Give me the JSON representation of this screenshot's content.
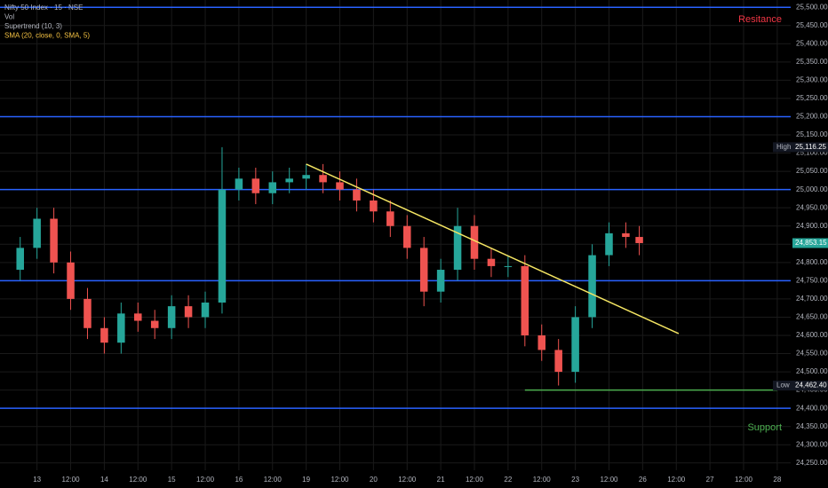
{
  "chart_data": {
    "type": "candlestick",
    "legend_lines": [
      "Nifty 50 Index · 15 · NSE",
      "Vol",
      "Supertrend (10, 3)",
      "SMA (20, close, 0, SMA, 5)"
    ],
    "up_color": "#26a69a",
    "down_color": "#ef5350",
    "grid": true,
    "x": [
      -0.5,
      0,
      0.5,
      1,
      1.5,
      2,
      2.5,
      3,
      3.5,
      4,
      4.5,
      5,
      5.5,
      6,
      6.5,
      7,
      7.5,
      8,
      8.5,
      9,
      9.5,
      10,
      10.5,
      11,
      11.5,
      12,
      12.5,
      13,
      13.5,
      14,
      14.5,
      15,
      15.5,
      16,
      16.5,
      17,
      17.5,
      17.9
    ],
    "open": [
      24780,
      24840,
      24920,
      24800,
      24700,
      24620,
      24580,
      24660,
      24640,
      24620,
      24680,
      24650,
      24690,
      25000,
      25030,
      24990,
      25020,
      25030,
      25040,
      25020,
      25000,
      24970,
      24940,
      24900,
      24840,
      24720,
      24780,
      24900,
      24810,
      24790,
      24790,
      24600,
      24560,
      24500,
      24650,
      24820,
      24880,
      24870
    ],
    "high": [
      24870,
      24950,
      24950,
      24830,
      24730,
      24650,
      24690,
      24690,
      24670,
      24710,
      24710,
      24720,
      25116.25,
      25060,
      25060,
      25050,
      25060,
      25070,
      25070,
      25050,
      25030,
      25000,
      24970,
      24930,
      24870,
      24810,
      24950,
      24930,
      24840,
      24820,
      24820,
      24630,
      24590,
      24680,
      24850,
      24910,
      24910,
      24900
    ],
    "low": [
      24750,
      24810,
      24770,
      24670,
      24590,
      24550,
      24550,
      24610,
      24590,
      24590,
      24620,
      24620,
      24660,
      24970,
      24960,
      24960,
      24990,
      25000,
      24990,
      24970,
      24940,
      24910,
      24870,
      24810,
      24680,
      24690,
      24750,
      24780,
      24760,
      24760,
      24570,
      24530,
      24462.4,
      24470,
      24620,
      24790,
      24840,
      24820
    ],
    "close": [
      24840,
      24920,
      24800,
      24700,
      24620,
      24580,
      24660,
      24640,
      24620,
      24680,
      24650,
      24690,
      25000,
      25030,
      24990,
      25020,
      25030,
      25040,
      25020,
      25000,
      24970,
      24940,
      24900,
      24840,
      24720,
      24780,
      24900,
      24810,
      24790,
      24790,
      24600,
      24560,
      24500,
      24650,
      24820,
      24880,
      24870,
      24853.15
    ],
    "levels": {
      "color": "#2962ff",
      "values": [
        25500,
        25200,
        25000,
        24750,
        24400
      ]
    },
    "support_line": {
      "color": "#4caf50",
      "x": [
        14.5,
        22
      ],
      "y": [
        24450,
        24450
      ]
    },
    "trendline": {
      "color": "#f5e663",
      "x": [
        8,
        19.07
      ],
      "y": [
        25070,
        24605
      ]
    },
    "annotations": [
      {
        "text": "Resitance",
        "color": "#f23645"
      },
      {
        "text": "Support",
        "color": "#4caf50"
      }
    ],
    "markers": [
      {
        "name": "High",
        "value": 25116.25,
        "label": "25,116.25"
      },
      {
        "value": 24853.15,
        "label": "24,853.15"
      },
      {
        "name": "Low",
        "value": 24462.4,
        "label": "24,462.40"
      }
    ],
    "xlim": [
      -1.1,
      22.4
    ],
    "xticks": [
      {
        "value": 0,
        "label": "13"
      },
      {
        "value": 1,
        "label": "12:00"
      },
      {
        "value": 2,
        "label": "14"
      },
      {
        "value": 3,
        "label": "12:00"
      },
      {
        "value": 4,
        "label": "15"
      },
      {
        "value": 5,
        "label": "12:00"
      },
      {
        "value": 6,
        "label": "16"
      },
      {
        "value": 7,
        "label": "12:00"
      },
      {
        "value": 8,
        "label": "19"
      },
      {
        "value": 9,
        "label": "12:00"
      },
      {
        "value": 10,
        "label": "20"
      },
      {
        "value": 11,
        "label": "12:00"
      },
      {
        "value": 12,
        "label": "21"
      },
      {
        "value": 13,
        "label": "12:00"
      },
      {
        "value": 14,
        "label": "22"
      },
      {
        "value": 15,
        "label": "12:00"
      },
      {
        "value": 16,
        "label": "23"
      },
      {
        "value": 17,
        "label": "12:00"
      },
      {
        "value": 18,
        "label": "26"
      },
      {
        "value": 19,
        "label": "12:00"
      },
      {
        "value": 20,
        "label": "27"
      },
      {
        "value": 21,
        "label": "12:00"
      },
      {
        "value": 22,
        "label": "28"
      }
    ],
    "ylim": [
      24230,
      25520
    ],
    "yticks": [
      {
        "value": 25500,
        "label": "25,500.00"
      },
      {
        "value": 25450,
        "label": "25,450.00"
      },
      {
        "value": 25400,
        "label": "25,400.00"
      },
      {
        "value": 25350,
        "label": "25,350.00"
      },
      {
        "value": 25300,
        "label": "25,300.00"
      },
      {
        "value": 25250,
        "label": "25,250.00"
      },
      {
        "value": 25200,
        "label": "25,200.00"
      },
      {
        "value": 25150,
        "label": "25,150.00"
      },
      {
        "value": 25100,
        "label": "25,100.00"
      },
      {
        "value": 25050,
        "label": "25,050.00"
      },
      {
        "value": 25000,
        "label": "25,000.00"
      },
      {
        "value": 24950,
        "label": "24,950.00"
      },
      {
        "value": 24900,
        "label": "24,900.00"
      },
      {
        "value": 24850,
        "label": "24,850.00"
      },
      {
        "value": 24800,
        "label": "24,800.00"
      },
      {
        "value": 24750,
        "label": "24,750.00"
      },
      {
        "value": 24700,
        "label": "24,700.00"
      },
      {
        "value": 24650,
        "label": "24,650.00"
      },
      {
        "value": 24600,
        "label": "24,600.00"
      },
      {
        "value": 24550,
        "label": "24,550.00"
      },
      {
        "value": 24500,
        "label": "24,500.00"
      },
      {
        "value": 24450,
        "label": "24,450.00"
      },
      {
        "value": 24400,
        "label": "24,400.00"
      },
      {
        "value": 24350,
        "label": "24,350.00"
      },
      {
        "value": 24300,
        "label": "24,300.00"
      },
      {
        "value": 24250,
        "label": "24,250.00"
      }
    ]
  }
}
